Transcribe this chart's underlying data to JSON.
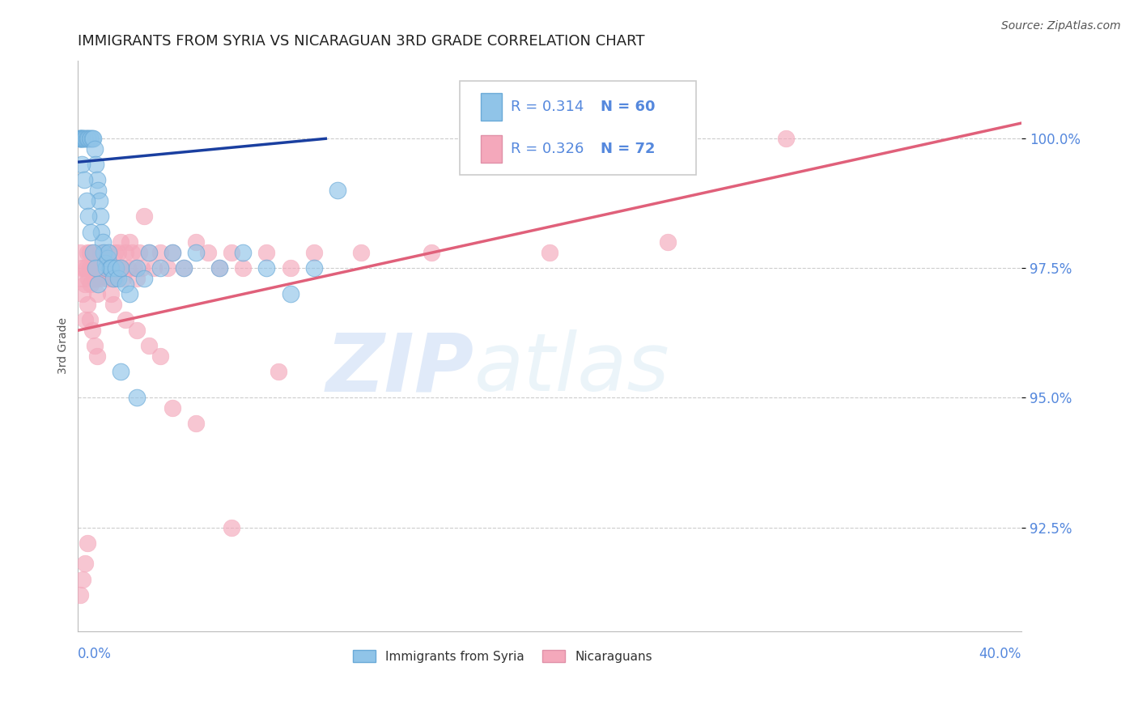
{
  "title": "IMMIGRANTS FROM SYRIA VS NICARAGUAN 3RD GRADE CORRELATION CHART",
  "source": "Source: ZipAtlas.com",
  "ylabel": "3rd Grade",
  "xlim": [
    0.0,
    40.0
  ],
  "ylim": [
    90.5,
    101.5
  ],
  "yticks": [
    92.5,
    95.0,
    97.5,
    100.0
  ],
  "legend_r_blue": "R = 0.314",
  "legend_n_blue": "N = 60",
  "legend_r_pink": "R = 0.326",
  "legend_n_pink": "N = 72",
  "legend_label_blue": "Immigrants from Syria",
  "legend_label_pink": "Nicaraguans",
  "blue_color": "#90C4E8",
  "pink_color": "#F4A8BB",
  "trend_blue_color": "#1A3FA0",
  "trend_pink_color": "#E0607A",
  "blue_scatter_x": [
    0.05,
    0.08,
    0.1,
    0.12,
    0.15,
    0.18,
    0.2,
    0.25,
    0.3,
    0.35,
    0.4,
    0.45,
    0.5,
    0.55,
    0.6,
    0.65,
    0.7,
    0.75,
    0.8,
    0.85,
    0.9,
    0.95,
    1.0,
    1.05,
    1.1,
    1.15,
    1.2,
    1.25,
    1.3,
    1.35,
    1.4,
    1.5,
    1.6,
    1.7,
    1.8,
    2.0,
    2.2,
    2.5,
    2.8,
    3.0,
    3.5,
    4.0,
    4.5,
    5.0,
    6.0,
    7.0,
    8.0,
    9.0,
    10.0,
    11.0,
    0.15,
    0.25,
    0.35,
    0.45,
    0.55,
    0.65,
    0.75,
    0.85,
    1.8,
    2.5
  ],
  "blue_scatter_y": [
    100.0,
    100.0,
    100.0,
    100.0,
    100.0,
    100.0,
    100.0,
    100.0,
    100.0,
    100.0,
    100.0,
    100.0,
    100.0,
    100.0,
    100.0,
    100.0,
    99.8,
    99.5,
    99.2,
    99.0,
    98.8,
    98.5,
    98.2,
    98.0,
    97.8,
    97.6,
    97.5,
    97.7,
    97.8,
    97.5,
    97.5,
    97.3,
    97.5,
    97.3,
    97.5,
    97.2,
    97.0,
    97.5,
    97.3,
    97.8,
    97.5,
    97.8,
    97.5,
    97.8,
    97.5,
    97.8,
    97.5,
    97.0,
    97.5,
    99.0,
    99.5,
    99.2,
    98.8,
    98.5,
    98.2,
    97.8,
    97.5,
    97.2,
    95.5,
    95.0
  ],
  "pink_scatter_x": [
    0.1,
    0.15,
    0.2,
    0.25,
    0.3,
    0.35,
    0.4,
    0.45,
    0.5,
    0.55,
    0.6,
    0.65,
    0.7,
    0.75,
    0.8,
    0.85,
    0.9,
    0.95,
    1.0,
    1.05,
    1.1,
    1.15,
    1.2,
    1.25,
    1.3,
    1.35,
    1.4,
    1.45,
    1.5,
    1.55,
    1.6,
    1.65,
    1.7,
    1.75,
    1.8,
    1.85,
    1.9,
    2.0,
    2.1,
    2.2,
    2.3,
    2.4,
    2.5,
    2.6,
    2.7,
    2.8,
    3.0,
    3.2,
    3.5,
    3.8,
    4.0,
    4.5,
    5.0,
    5.5,
    6.0,
    6.5,
    7.0,
    8.0,
    9.0,
    10.0,
    12.0,
    15.0,
    20.0,
    25.0,
    30.0,
    0.2,
    0.3,
    0.4,
    0.5,
    0.6,
    0.7,
    0.8
  ],
  "pink_scatter_y": [
    97.8,
    97.5,
    97.3,
    97.5,
    97.2,
    97.5,
    97.8,
    97.3,
    97.5,
    97.2,
    97.8,
    97.5,
    97.3,
    97.5,
    97.0,
    97.3,
    97.5,
    97.8,
    97.5,
    97.3,
    97.5,
    97.8,
    97.5,
    97.3,
    97.8,
    97.5,
    97.0,
    97.3,
    97.5,
    97.8,
    97.3,
    97.5,
    97.8,
    97.5,
    98.0,
    97.5,
    97.3,
    97.8,
    97.5,
    98.0,
    97.8,
    97.5,
    97.3,
    97.8,
    97.5,
    98.5,
    97.8,
    97.5,
    97.8,
    97.5,
    97.8,
    97.5,
    98.0,
    97.8,
    97.5,
    97.8,
    97.5,
    97.8,
    97.5,
    97.8,
    97.8,
    97.8,
    97.8,
    98.0,
    100.0,
    97.0,
    96.5,
    96.8,
    96.5,
    96.3,
    96.0,
    95.8
  ],
  "pink_scatter_x2": [
    0.1,
    0.2,
    0.3,
    0.4,
    0.5,
    0.6,
    0.7,
    0.8,
    1.5,
    2.0,
    2.5,
    3.0,
    3.5,
    4.0,
    5.0,
    6.5,
    8.5
  ],
  "pink_scatter_y2": [
    91.2,
    91.5,
    91.8,
    92.2,
    97.8,
    97.5,
    97.3,
    97.5,
    96.8,
    96.5,
    96.3,
    96.0,
    95.8,
    94.8,
    94.5,
    92.5,
    95.5
  ],
  "blue_trend_x": [
    0.05,
    10.5
  ],
  "blue_trend_y": [
    99.55,
    100.0
  ],
  "pink_trend_x": [
    0.0,
    40.0
  ],
  "pink_trend_y": [
    96.3,
    100.3
  ],
  "watermark_zip": "ZIP",
  "watermark_atlas": "atlas",
  "background_color": "#FFFFFF",
  "grid_color": "#CCCCCC",
  "tick_label_color": "#5588DD",
  "title_fontsize": 13,
  "axis_label_fontsize": 10,
  "tick_fontsize": 12
}
